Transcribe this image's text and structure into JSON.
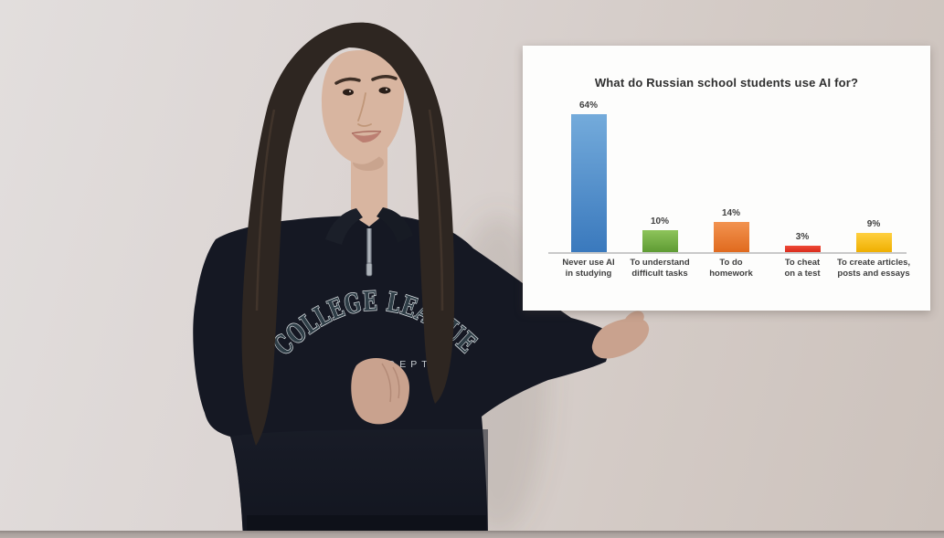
{
  "scene": {
    "description": "Young woman with long dark hair in a dark quarter-zip sweatshirt presenting beside a white bar-chart slide on a beige wall",
    "wall_color": "#D7CEC9",
    "bottom_edge_color": "#ABA29E"
  },
  "person": {
    "sweatshirt_text_arc": "COLLEGE LEAGUE",
    "sweatshirt_text_sub": "DEPT.",
    "sweatshirt_color": "#151823",
    "sweatshirt_letter_color": "#2E3D46",
    "sweatshirt_letter_outline": "#D8DDE0",
    "hair_color": "#2E2621",
    "skin_color": "#D8B5A0",
    "hand_color": "#C9A28E",
    "lip_color": "#BC7F72"
  },
  "chart_data": {
    "type": "bar",
    "title": "What do Russian school students use AI for?",
    "categories": [
      "Never use AI\nin studying",
      "To understand\ndifficult tasks",
      "To do\nhomework",
      "To cheat\non a test",
      "To create articles,\nposts and essays"
    ],
    "values": [
      64,
      10,
      14,
      3,
      9
    ],
    "value_labels": [
      "64%",
      "10%",
      "14%",
      "3%",
      "9%"
    ],
    "unit": "%",
    "xlabel": "",
    "ylabel": "",
    "ylim": [
      0,
      70
    ],
    "grid": false,
    "legend": false,
    "background": "#FFFFFF",
    "axis_line_color": "#C9C9C9",
    "value_label_color": "#3F3F3F",
    "bar_colors": [
      {
        "top": "#74ABDB",
        "bottom": "#3A79BD"
      },
      {
        "top": "#8EC45B",
        "bottom": "#5E9B33"
      },
      {
        "top": "#F29350",
        "bottom": "#E06A1E"
      },
      {
        "top": "#EE4B38",
        "bottom": "#D92B1C"
      },
      {
        "top": "#FFD040",
        "bottom": "#EFAF00"
      }
    ]
  }
}
